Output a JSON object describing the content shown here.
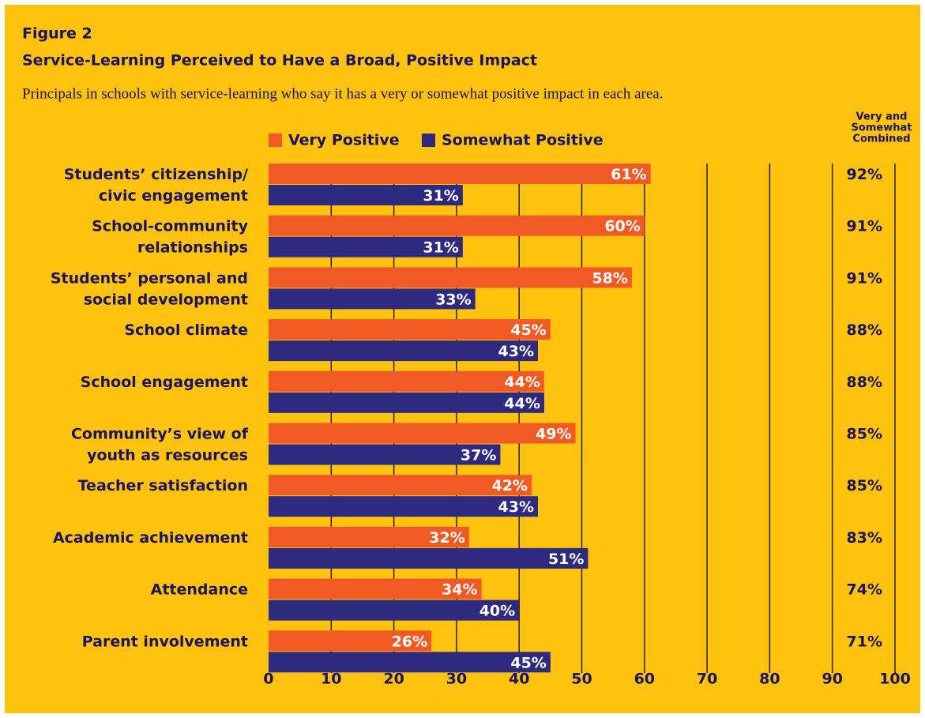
{
  "chart_data": {
    "type": "bar",
    "figure": "Figure 2",
    "title": "Service-Learning Perceived to Have a Broad, Positive Impact",
    "subtitle": "Principals in schools with service-learning who say it has a very or somewhat positive impact in each area.",
    "categories": [
      [
        "Students’ citizenship/",
        "civic engagement"
      ],
      [
        "School-community",
        "relationships"
      ],
      [
        "Students’ personal and",
        "social development"
      ],
      [
        "School climate"
      ],
      [
        "School engagement"
      ],
      [
        "Community’s view of",
        "youth as resources"
      ],
      [
        "Teacher satisfaction"
      ],
      [
        "Academic achievement"
      ],
      [
        "Attendance"
      ],
      [
        "Parent involvement"
      ]
    ],
    "series": [
      {
        "name": "Very Positive",
        "color": "#f15a24",
        "values": [
          61,
          60,
          58,
          45,
          44,
          49,
          42,
          32,
          34,
          26
        ],
        "value_labels": [
          "61%",
          "60%",
          "58%",
          "45%",
          "44%",
          "49%",
          "42%",
          "32%",
          "34%",
          "26%"
        ]
      },
      {
        "name": "Somewhat Positive",
        "color": "#2e2a7f",
        "values": [
          31,
          31,
          33,
          43,
          44,
          37,
          43,
          51,
          40,
          45
        ],
        "value_labels": [
          "31%",
          "31%",
          "33%",
          "43%",
          "44%",
          "37%",
          "43%",
          "51%",
          "40%",
          "45%"
        ]
      }
    ],
    "combined": {
      "title": [
        "Very and",
        "Somewhat",
        "Combined"
      ],
      "values": [
        92,
        91,
        91,
        88,
        88,
        85,
        85,
        83,
        74,
        71
      ],
      "value_labels": [
        "92%",
        "91%",
        "91%",
        "88%",
        "88%",
        "85%",
        "85%",
        "83%",
        "74%",
        "71%"
      ]
    },
    "xlim": [
      0,
      100
    ],
    "xticks": [
      0,
      10,
      20,
      30,
      40,
      50,
      60,
      70,
      80,
      90,
      100
    ],
    "grid": true
  }
}
